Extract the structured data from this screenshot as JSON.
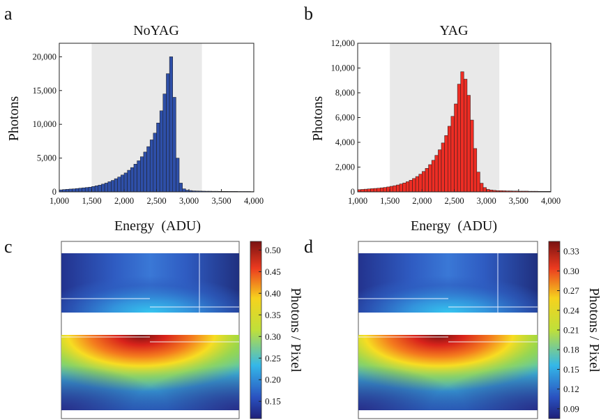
{
  "figure": {
    "panel_letters": [
      "a",
      "b",
      "c",
      "d"
    ],
    "colorbar_label": "Photons / Pixel"
  },
  "chart_data": [
    {
      "type": "bar",
      "panel": "a",
      "title": "NoYAG",
      "xlabel": "Energy  (ADU)",
      "ylabel": "Photons",
      "xlim": [
        1000,
        4000
      ],
      "ylim": [
        0,
        22000
      ],
      "xticks": [
        1000,
        1500,
        2000,
        2500,
        3000,
        3500,
        4000
      ],
      "xtick_labels": [
        "1,000",
        "1,500",
        "2,000",
        "2,500",
        "3,000",
        "3,500",
        "4,000"
      ],
      "yticks": [
        0,
        5000,
        10000,
        15000,
        20000
      ],
      "ytick_labels": [
        "0",
        "5,000",
        "10,000",
        "15,000",
        "20,000"
      ],
      "highlight_range": [
        1500,
        3200
      ],
      "bin_width": 50,
      "bin_start": 1000,
      "values": [
        300,
        350,
        380,
        420,
        450,
        500,
        550,
        600,
        650,
        700,
        800,
        900,
        1000,
        1150,
        1300,
        1500,
        1700,
        1950,
        2200,
        2500,
        2800,
        3200,
        3600,
        4100,
        4600,
        5200,
        5900,
        6700,
        7700,
        8700,
        10200,
        12000,
        14500,
        17500,
        20000,
        14000,
        5000,
        1300,
        450,
        250,
        200,
        150,
        130,
        120,
        110,
        100,
        100,
        90,
        90,
        80,
        80,
        80,
        70,
        70,
        70,
        60,
        60,
        60,
        60,
        50
      ],
      "bar_color": "#2e4fa8",
      "grid": false
    },
    {
      "type": "bar",
      "panel": "b",
      "title": "YAG",
      "xlabel": "Energy  (ADU)",
      "ylabel": "Photons",
      "xlim": [
        1000,
        4000
      ],
      "ylim": [
        0,
        12000
      ],
      "xticks": [
        1000,
        1500,
        2000,
        2500,
        3000,
        3500,
        4000
      ],
      "xtick_labels": [
        "1,000",
        "1,500",
        "2,000",
        "2,500",
        "3,000",
        "3,500",
        "4,000"
      ],
      "yticks": [
        0,
        2000,
        4000,
        6000,
        8000,
        10000,
        12000
      ],
      "ytick_labels": [
        "0",
        "2,000",
        "4,000",
        "6,000",
        "8,000",
        "10,000",
        "12,000"
      ],
      "highlight_range": [
        1500,
        3200
      ],
      "bin_width": 50,
      "bin_start": 1000,
      "values": [
        180,
        200,
        220,
        240,
        260,
        280,
        300,
        330,
        360,
        400,
        450,
        500,
        560,
        640,
        720,
        820,
        940,
        1080,
        1240,
        1430,
        1650,
        1900,
        2200,
        2550,
        2950,
        3400,
        3950,
        4550,
        5300,
        6100,
        7100,
        8700,
        9700,
        9100,
        7800,
        5800,
        3500,
        1600,
        700,
        350,
        200,
        150,
        120,
        100,
        100,
        90,
        80,
        80,
        70,
        70,
        60,
        60,
        60,
        50,
        50,
        50,
        40,
        40,
        40,
        40
      ],
      "bar_color": "#ee2d24",
      "grid": false
    },
    {
      "type": "heatmap",
      "panel": "c",
      "colormap": "jet",
      "colorbar_range": [
        0.11,
        0.52
      ],
      "colorbar_ticks": [
        0.15,
        0.2,
        0.25,
        0.3,
        0.35,
        0.4,
        0.45,
        0.5
      ],
      "colorbar_tick_labels": [
        "0.15",
        "0.20",
        "0.25",
        "0.30",
        "0.35",
        "0.40",
        "0.45",
        "0.50"
      ],
      "colorbar_label": "Photons / Pixel"
    },
    {
      "type": "heatmap",
      "panel": "d",
      "colormap": "jet",
      "colorbar_range": [
        0.075,
        0.345
      ],
      "colorbar_ticks": [
        0.09,
        0.12,
        0.15,
        0.18,
        0.21,
        0.24,
        0.27,
        0.3,
        0.33
      ],
      "colorbar_tick_labels": [
        "0.09",
        "0.12",
        "0.15",
        "0.18",
        "0.21",
        "0.24",
        "0.27",
        "0.30",
        "0.33"
      ],
      "colorbar_label": "Photons / Pixel"
    }
  ]
}
